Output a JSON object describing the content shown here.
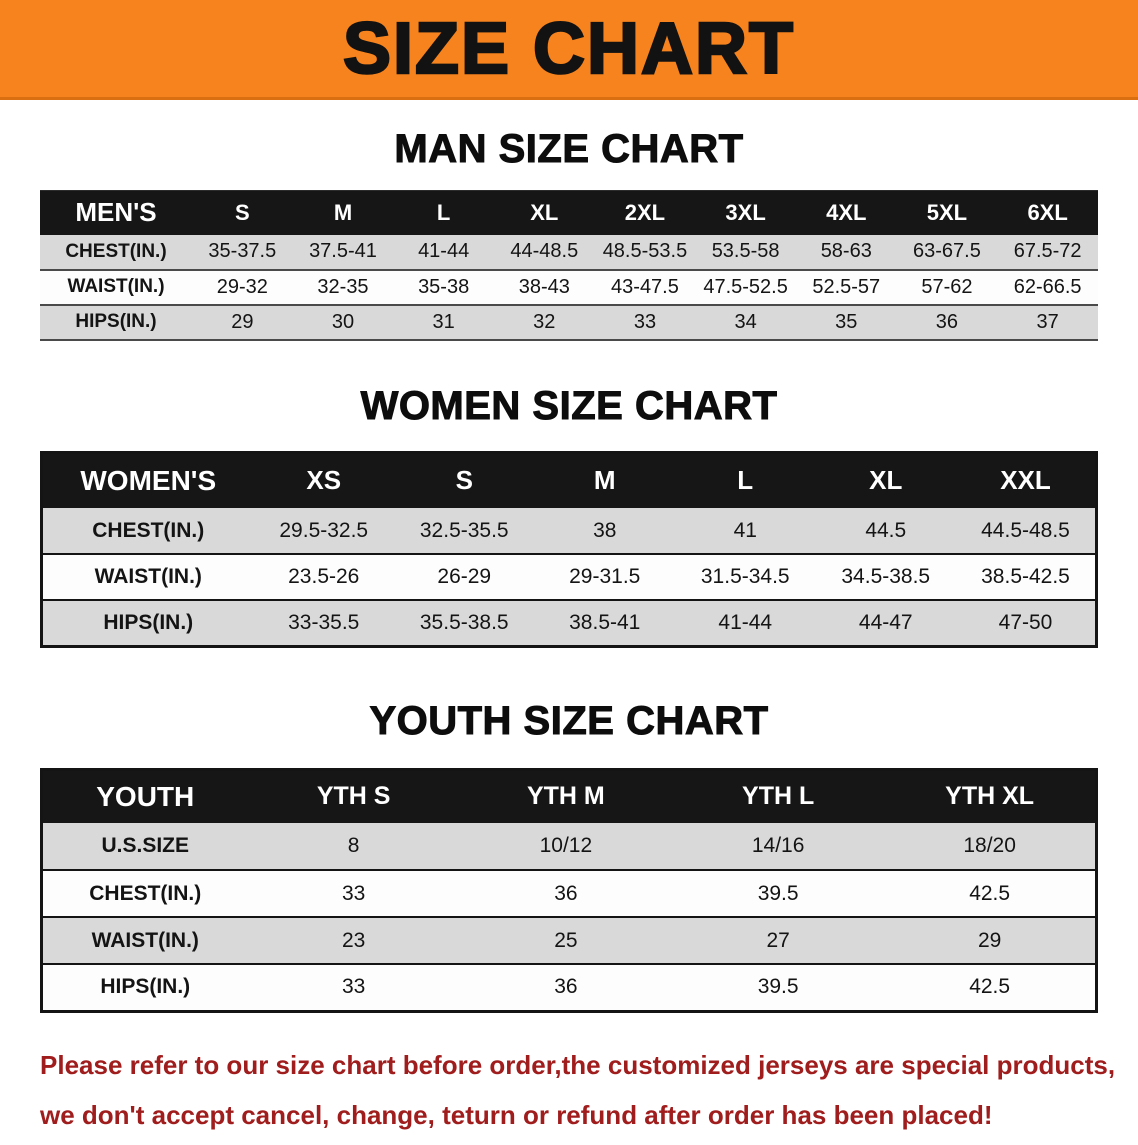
{
  "banner": {
    "title": "SIZE CHART"
  },
  "headings": {
    "men": "MAN SIZE CHART",
    "women": "WOMEN SIZE CHART",
    "youth": "YOUTH SIZE CHART"
  },
  "tables": {
    "men": {
      "header": [
        "MEN'S",
        "S",
        "M",
        "L",
        "XL",
        "2XL",
        "3XL",
        "4XL",
        "5XL",
        "6XL"
      ],
      "rows": [
        [
          "CHEST(IN.)",
          "35-37.5",
          "37.5-41",
          "41-44",
          "44-48.5",
          "48.5-53.5",
          "53.5-58",
          "58-63",
          "63-67.5",
          "67.5-72"
        ],
        [
          "WAIST(IN.)",
          "29-32",
          "32-35",
          "35-38",
          "38-43",
          "43-47.5",
          "47.5-52.5",
          "52.5-57",
          "57-62",
          "62-66.5"
        ],
        [
          "HIPS(IN.)",
          "29",
          "30",
          "31",
          "32",
          "33",
          "34",
          "35",
          "36",
          "37"
        ]
      ]
    },
    "women": {
      "header": [
        "WOMEN'S",
        "XS",
        "S",
        "M",
        "L",
        "XL",
        "XXL"
      ],
      "rows": [
        [
          "CHEST(IN.)",
          "29.5-32.5",
          "32.5-35.5",
          "38",
          "41",
          "44.5",
          "44.5-48.5"
        ],
        [
          "WAIST(IN.)",
          "23.5-26",
          "26-29",
          "29-31.5",
          "31.5-34.5",
          "34.5-38.5",
          "38.5-42.5"
        ],
        [
          "HIPS(IN.)",
          "33-35.5",
          "35.5-38.5",
          "38.5-41",
          "41-44",
          "44-47",
          "47-50"
        ]
      ]
    },
    "youth": {
      "header": [
        "YOUTH",
        "YTH S",
        "YTH M",
        "YTH L",
        "YTH XL"
      ],
      "rows": [
        [
          "U.S.SIZE",
          "8",
          "10/12",
          "14/16",
          "18/20"
        ],
        [
          "CHEST(IN.)",
          "33",
          "36",
          "39.5",
          "42.5"
        ],
        [
          "WAIST(IN.)",
          "23",
          "25",
          "27",
          "29"
        ],
        [
          "HIPS(IN.)",
          "33",
          "36",
          "39.5",
          "42.5"
        ]
      ]
    }
  },
  "footer": {
    "line1": "Please refer to our size chart before order,the customized jerseys are special products,",
    "line2": "we don't accept cancel, change, teturn or refund after order has been placed!"
  },
  "colors": {
    "banner_bg": "#f6831d",
    "table_header_bg": "#161616",
    "row_stripe": "#d9d9d9",
    "footer_text": "#a01d1d"
  }
}
